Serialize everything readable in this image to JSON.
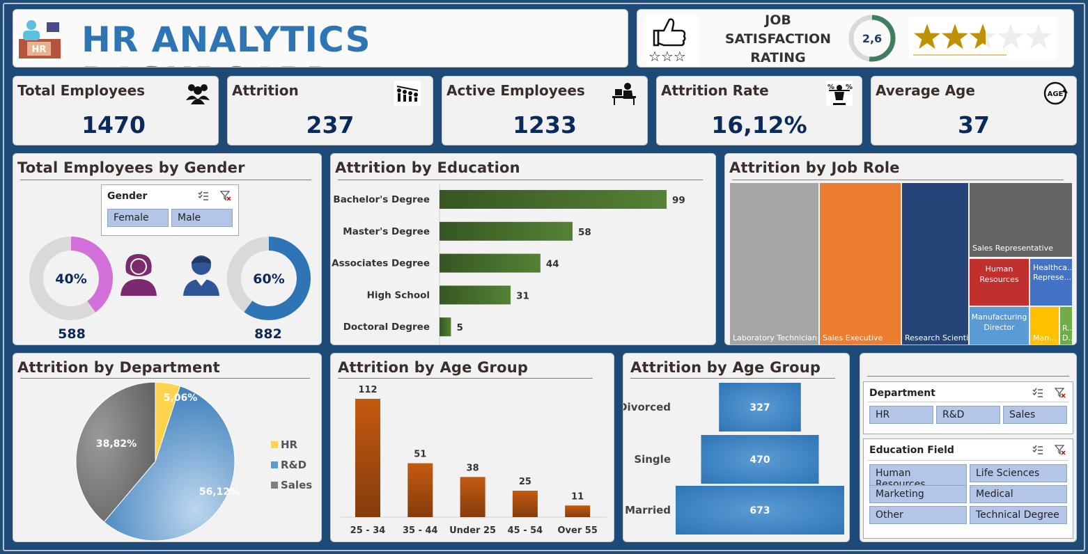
{
  "header": {
    "title": "HR ANALYTICS DASHBOARD",
    "logo_text": "HR"
  },
  "satisfaction": {
    "title_l1": "JOB",
    "title_l2": "SATISFACTION",
    "title_l3": "RATING",
    "value": "2,6",
    "rating": 2.6,
    "max": 5,
    "stars_filled": 2.6
  },
  "kpis": [
    {
      "label": "Total Employees",
      "value": "1470",
      "icon": "people-group-icon"
    },
    {
      "label": "Attrition",
      "value": "237",
      "icon": "attrition-people-icon"
    },
    {
      "label": "Active Employees",
      "value": "1233",
      "icon": "desk-worker-icon"
    },
    {
      "label": "Attrition Rate",
      "value": "16,12%",
      "icon": "percent-balance-icon"
    },
    {
      "label": "Average Age",
      "value": "37",
      "icon": "age-icon"
    }
  ],
  "gender": {
    "title": "Total Employees by Gender",
    "slicer_title": "Gender",
    "options": [
      "Female",
      "Male"
    ],
    "female_pct": "40%",
    "female_count": "588",
    "female_fraction": 0.4,
    "male_pct": "60%",
    "male_count": "882",
    "male_fraction": 0.6
  },
  "colors": {
    "female": "#d36fd8",
    "male": "#2e75b6",
    "ring_bg": "#d9d9d9",
    "edu_bar": "#548235",
    "age_bar": "#c55a11"
  },
  "chart_data": [
    {
      "type": "bar",
      "orientation": "horizontal",
      "title": "Attrition by Education",
      "categories": [
        "Bachelor's Degree",
        "Master's Degree",
        "Associates Degree",
        "High School",
        "Doctoral Degree"
      ],
      "values": [
        99,
        58,
        44,
        31,
        5
      ]
    },
    {
      "type": "treemap",
      "title": "Attrition by Job Role",
      "categories": [
        "Laboratory Technician",
        "Sales Executive",
        "Research Scientist",
        "Sales Representative",
        "Human Resources",
        "Healthca... Represe...",
        "Manufacturing Director",
        "Man...",
        "R... D..."
      ],
      "colors": [
        "#a5a5a5",
        "#ed7d31",
        "#264478",
        "#636363",
        "#c0302e",
        "#4472c4",
        "#5b9bd5",
        "#ffc000",
        "#70ad47"
      ]
    },
    {
      "type": "pie",
      "title": "Attrition by Department",
      "categories": [
        "HR",
        "R&D",
        "Sales"
      ],
      "values": [
        5.06,
        56.12,
        38.82
      ],
      "labels": [
        "5,06%",
        "56,12%",
        "38,82%"
      ],
      "colors": [
        "#ffd34d",
        "#5b9bd5",
        "#7f7f7f"
      ],
      "legend": "right"
    },
    {
      "type": "bar",
      "title": "Attrition by Age Group",
      "categories": [
        "25 - 34",
        "35 - 44",
        "Under 25",
        "45 - 54",
        "Over 55"
      ],
      "values": [
        112,
        51,
        38,
        25,
        11
      ]
    },
    {
      "type": "bar",
      "orientation": "horizontal-funnel",
      "title": "Attrition by Age Group",
      "categories": [
        "Divorced",
        "Single",
        "Married"
      ],
      "values": [
        327,
        470,
        673
      ],
      "color": "#2e75b6"
    }
  ],
  "slicers": {
    "department": {
      "title": "Department",
      "options": [
        "HR",
        "R&D",
        "Sales"
      ]
    },
    "education_field": {
      "title": "Education Field",
      "options": [
        "Human Resources",
        "Life Sciences",
        "Marketing",
        "Medical",
        "Other",
        "Technical Degree"
      ]
    }
  }
}
